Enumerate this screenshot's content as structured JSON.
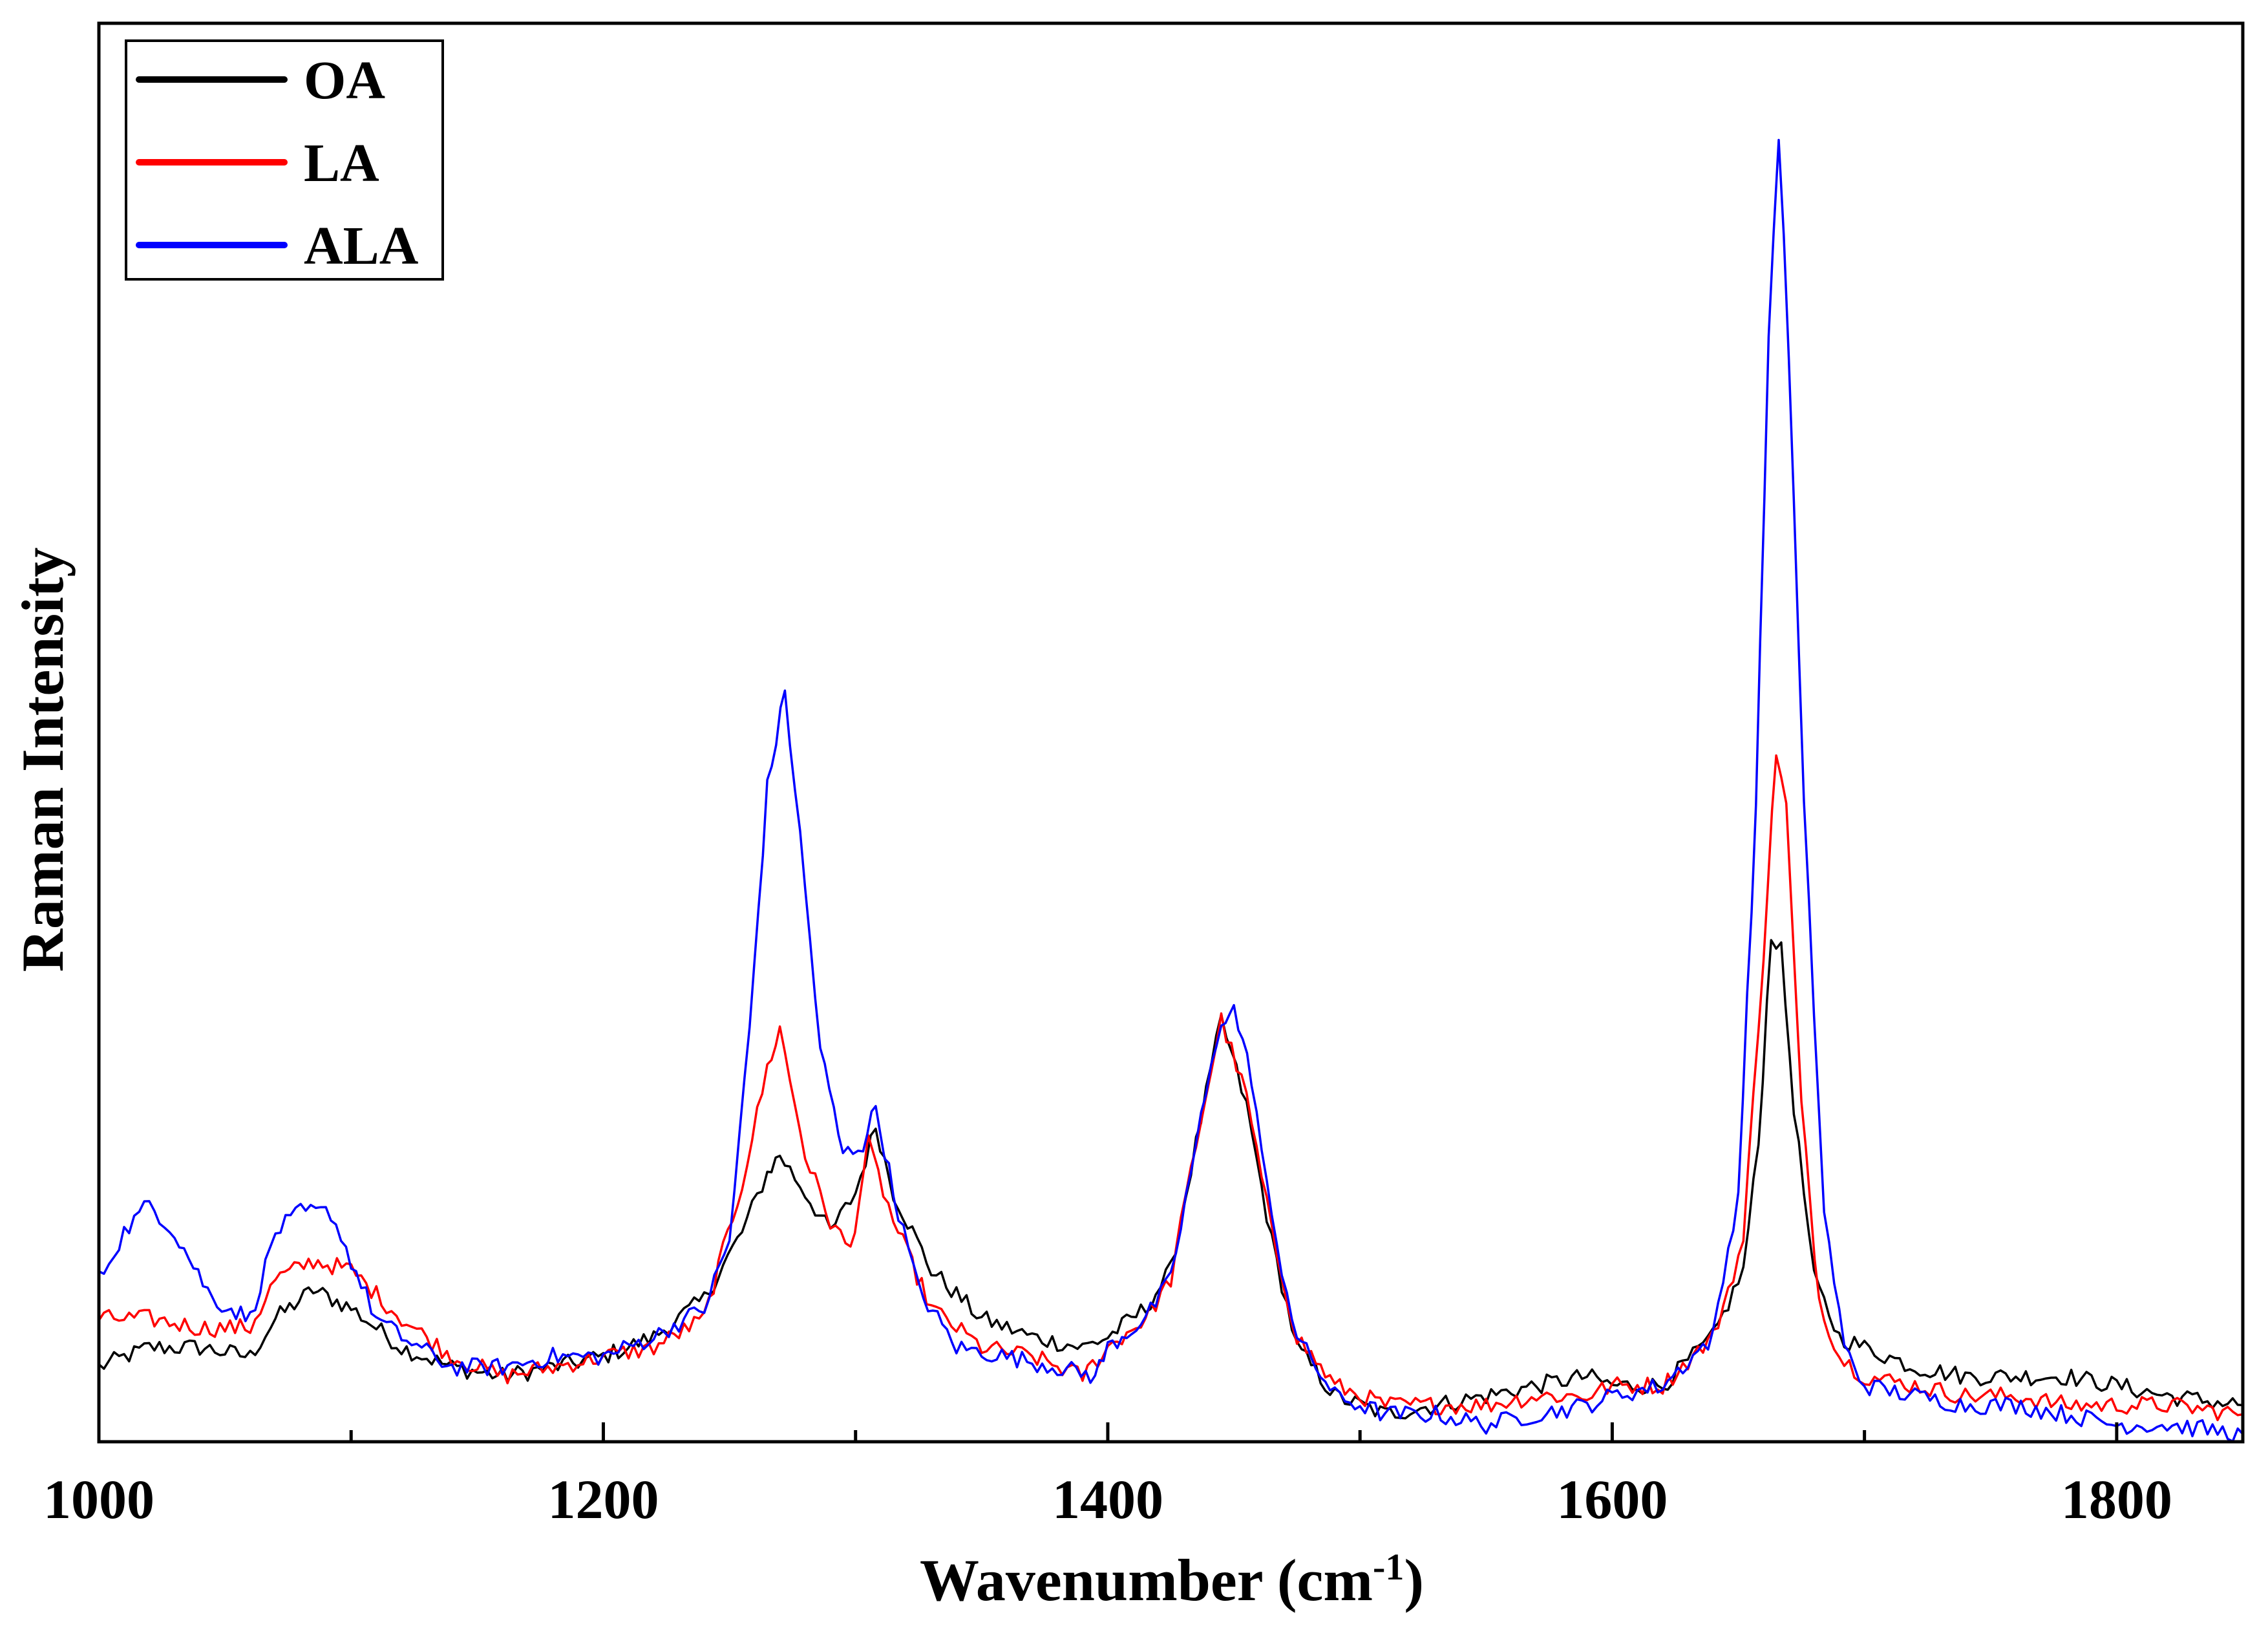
{
  "chart_data": {
    "type": "line",
    "xlabel": "Wavenumber (cm",
    "xlabel_sup": "-1",
    "xlabel_suffix": ")",
    "ylabel": "Raman Intensity",
    "xlim": [
      1000,
      1850
    ],
    "ylim": [
      0,
      100
    ],
    "xticks": [
      1000,
      1200,
      1400,
      1600,
      1800
    ],
    "xtick_labels": [
      "1000",
      "1200",
      "1400",
      "1600",
      "1800"
    ],
    "yticks_shown": false,
    "grid": false,
    "legend_position": "top-left",
    "series": [
      {
        "name": "OA",
        "color": "#000000",
        "points": [
          [
            1000,
            5.1
          ],
          [
            1020,
            6.6
          ],
          [
            1040,
            6.6
          ],
          [
            1060,
            5.9
          ],
          [
            1070,
            8.8
          ],
          [
            1085,
            11.0
          ],
          [
            1100,
            9.6
          ],
          [
            1120,
            6.6
          ],
          [
            1140,
            5.1
          ],
          [
            1160,
            4.4
          ],
          [
            1180,
            5.1
          ],
          [
            1200,
            5.9
          ],
          [
            1220,
            7.4
          ],
          [
            1240,
            10.3
          ],
          [
            1255,
            15.4
          ],
          [
            1265,
            19.9
          ],
          [
            1270,
            21.3
          ],
          [
            1280,
            18.4
          ],
          [
            1290,
            15.4
          ],
          [
            1300,
            18.4
          ],
          [
            1308,
            23.5
          ],
          [
            1315,
            18.4
          ],
          [
            1330,
            12.5
          ],
          [
            1350,
            8.8
          ],
          [
            1370,
            7.4
          ],
          [
            1390,
            6.6
          ],
          [
            1400,
            7.4
          ],
          [
            1415,
            9.6
          ],
          [
            1425,
            12.5
          ],
          [
            1435,
            22.1
          ],
          [
            1445,
            31.6
          ],
          [
            1455,
            25.0
          ],
          [
            1465,
            14.7
          ],
          [
            1475,
            6.6
          ],
          [
            1490,
            2.9
          ],
          [
            1510,
            1.5
          ],
          [
            1530,
            2.2
          ],
          [
            1550,
            2.9
          ],
          [
            1570,
            3.7
          ],
          [
            1590,
            4.4
          ],
          [
            1600,
            3.7
          ],
          [
            1620,
            3.7
          ],
          [
            1640,
            7.4
          ],
          [
            1652,
            12.5
          ],
          [
            1658,
            22.1
          ],
          [
            1663,
            38.2
          ],
          [
            1667,
            36.8
          ],
          [
            1672,
            25.0
          ],
          [
            1680,
            11.8
          ],
          [
            1690,
            7.4
          ],
          [
            1700,
            6.6
          ],
          [
            1720,
            5.1
          ],
          [
            1740,
            4.4
          ],
          [
            1760,
            4.4
          ],
          [
            1780,
            4.4
          ],
          [
            1800,
            3.7
          ],
          [
            1820,
            2.9
          ],
          [
            1850,
            2.2
          ]
        ]
      },
      {
        "name": "LA",
        "color": "#ff0000",
        "points": [
          [
            1000,
            8.8
          ],
          [
            1020,
            8.8
          ],
          [
            1040,
            8.1
          ],
          [
            1060,
            8.1
          ],
          [
            1070,
            11.8
          ],
          [
            1085,
            13.2
          ],
          [
            1100,
            12.5
          ],
          [
            1120,
            8.8
          ],
          [
            1140,
            5.9
          ],
          [
            1160,
            4.4
          ],
          [
            1180,
            5.1
          ],
          [
            1200,
            5.9
          ],
          [
            1220,
            6.6
          ],
          [
            1240,
            8.8
          ],
          [
            1255,
            19.1
          ],
          [
            1265,
            27.9
          ],
          [
            1270,
            30.9
          ],
          [
            1280,
            21.3
          ],
          [
            1290,
            16.2
          ],
          [
            1298,
            14.0
          ],
          [
            1305,
            22.1
          ],
          [
            1315,
            16.2
          ],
          [
            1330,
            9.6
          ],
          [
            1350,
            6.6
          ],
          [
            1370,
            5.9
          ],
          [
            1390,
            4.4
          ],
          [
            1400,
            6.6
          ],
          [
            1415,
            8.8
          ],
          [
            1425,
            11.8
          ],
          [
            1435,
            22.1
          ],
          [
            1445,
            31.6
          ],
          [
            1455,
            25.7
          ],
          [
            1465,
            15.4
          ],
          [
            1475,
            7.4
          ],
          [
            1490,
            3.7
          ],
          [
            1510,
            2.2
          ],
          [
            1530,
            2.2
          ],
          [
            1550,
            2.2
          ],
          [
            1570,
            2.9
          ],
          [
            1590,
            2.9
          ],
          [
            1600,
            3.7
          ],
          [
            1620,
            3.7
          ],
          [
            1640,
            7.4
          ],
          [
            1652,
            14.7
          ],
          [
            1660,
            36.8
          ],
          [
            1665,
            52.2
          ],
          [
            1669,
            47.8
          ],
          [
            1675,
            25.0
          ],
          [
            1682,
            10.3
          ],
          [
            1690,
            5.9
          ],
          [
            1700,
            4.4
          ],
          [
            1720,
            3.7
          ],
          [
            1740,
            2.9
          ],
          [
            1760,
            2.9
          ],
          [
            1780,
            2.2
          ],
          [
            1800,
            2.2
          ],
          [
            1820,
            2.2
          ],
          [
            1850,
            1.5
          ]
        ]
      },
      {
        "name": "ALA",
        "color": "#0000ff",
        "points": [
          [
            1000,
            11.8
          ],
          [
            1010,
            15.4
          ],
          [
            1020,
            17.6
          ],
          [
            1030,
            15.4
          ],
          [
            1045,
            10.3
          ],
          [
            1060,
            8.8
          ],
          [
            1070,
            15.4
          ],
          [
            1080,
            16.9
          ],
          [
            1092,
            16.9
          ],
          [
            1100,
            13.2
          ],
          [
            1110,
            8.8
          ],
          [
            1120,
            7.4
          ],
          [
            1140,
            5.1
          ],
          [
            1160,
            5.1
          ],
          [
            1180,
            5.9
          ],
          [
            1200,
            5.9
          ],
          [
            1220,
            7.4
          ],
          [
            1240,
            9.6
          ],
          [
            1250,
            14.7
          ],
          [
            1258,
            30.9
          ],
          [
            1265,
            49.3
          ],
          [
            1272,
            56.6
          ],
          [
            1278,
            45.6
          ],
          [
            1286,
            29.4
          ],
          [
            1295,
            21.3
          ],
          [
            1303,
            22.1
          ],
          [
            1308,
            25.0
          ],
          [
            1315,
            18.4
          ],
          [
            1325,
            11.0
          ],
          [
            1340,
            6.6
          ],
          [
            1360,
            5.9
          ],
          [
            1380,
            5.1
          ],
          [
            1395,
            4.4
          ],
          [
            1400,
            6.6
          ],
          [
            1415,
            8.8
          ],
          [
            1425,
            11.8
          ],
          [
            1435,
            22.1
          ],
          [
            1445,
            31.6
          ],
          [
            1450,
            32.4
          ],
          [
            1457,
            27.2
          ],
          [
            1465,
            16.2
          ],
          [
            1475,
            7.4
          ],
          [
            1490,
            2.9
          ],
          [
            1510,
            1.5
          ],
          [
            1530,
            1.5
          ],
          [
            1550,
            0.7
          ],
          [
            1570,
            1.5
          ],
          [
            1590,
            2.2
          ],
          [
            1600,
            2.9
          ],
          [
            1620,
            3.7
          ],
          [
            1640,
            7.4
          ],
          [
            1650,
            18.4
          ],
          [
            1657,
            47.8
          ],
          [
            1662,
            83.8
          ],
          [
            1666,
            99.3
          ],
          [
            1670,
            82.4
          ],
          [
            1676,
            47.8
          ],
          [
            1684,
            16.9
          ],
          [
            1692,
            6.6
          ],
          [
            1700,
            3.7
          ],
          [
            1720,
            2.9
          ],
          [
            1740,
            2.2
          ],
          [
            1760,
            2.2
          ],
          [
            1780,
            1.5
          ],
          [
            1800,
            0.7
          ],
          [
            1820,
            0.7
          ],
          [
            1850,
            0.0
          ]
        ]
      }
    ]
  }
}
